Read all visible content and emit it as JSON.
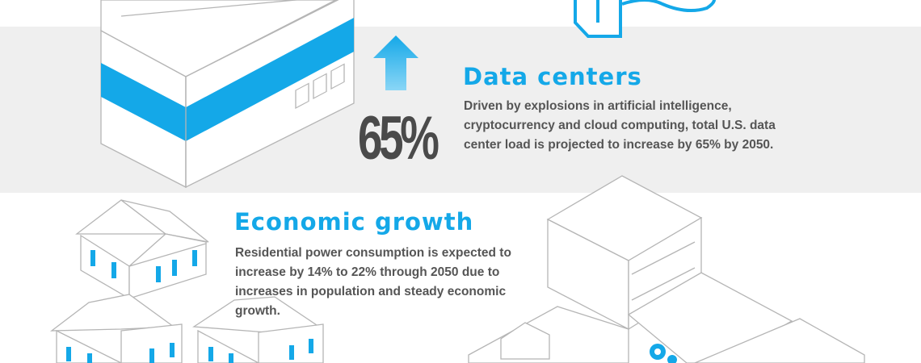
{
  "data_centers": {
    "title": "Data centers",
    "body": "Driven by explosions in artificial intelligence, cryptocurrency and cloud computing, total U.S. data center load is projected to increase by 65% by 2050.",
    "stat": "65%",
    "arrow_icon": "up-arrow-icon"
  },
  "economic_growth": {
    "title": "Economic growth",
    "body": "Residential power consumption is expected to increase by 14% to 22% through 2050 due to increases in population and steady economic growth."
  },
  "colors": {
    "accent": "#14a8e8",
    "band": "#efefef",
    "text": "#555555",
    "line": "#bdbdbd"
  }
}
